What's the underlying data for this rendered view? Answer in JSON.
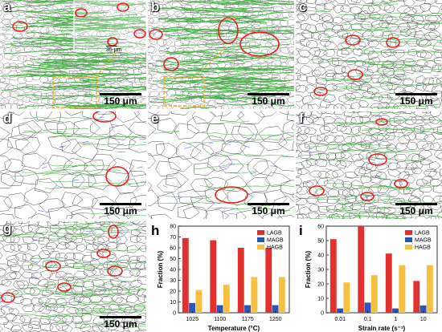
{
  "panels": [
    {
      "label": "a",
      "scale": "150 μm",
      "inset_scale": "35 μm"
    },
    {
      "label": "b",
      "scale": "150 μm"
    },
    {
      "label": "c",
      "scale": "150 μm"
    },
    {
      "label": "d",
      "scale": "150 μm"
    },
    {
      "label": "e",
      "scale": "150 μm"
    },
    {
      "label": "f",
      "scale": "150 μm"
    },
    {
      "label": "g",
      "scale": "150 μm"
    }
  ],
  "colors": {
    "LAGB": "#e03030",
    "MAGB": "#2a56b8",
    "HAGB": "#f8c040",
    "highlight": "#e8201c",
    "zoom_box": "#f0b020",
    "green_boundary": "#3aa83a",
    "blue_boundary": "#2040c0"
  },
  "chart_data": [
    {
      "label": "h",
      "type": "bar",
      "categories": [
        "1025",
        "1100",
        "1175",
        "1250"
      ],
      "series": [
        {
          "name": "LAGB",
          "values": [
            69,
            67,
            60,
            60
          ]
        },
        {
          "name": "MAGB",
          "values": [
            9,
            7,
            7,
            7
          ]
        },
        {
          "name": "HAGB",
          "values": [
            21,
            26,
            33,
            33
          ]
        }
      ],
      "xlabel": "Temperature (°C)",
      "ylabel": "Fraction (%)",
      "ylim": [
        0,
        80
      ],
      "yticks": [
        "0",
        "10",
        "20",
        "30",
        "40",
        "50",
        "60",
        "70",
        "80"
      ],
      "legend": "top-right"
    },
    {
      "label": "i",
      "type": "bar",
      "categories": [
        "0.01",
        "0.1",
        "1",
        "10"
      ],
      "series": [
        {
          "name": "LAGB",
          "values": [
            51,
            60,
            41,
            22
          ]
        },
        {
          "name": "MAGB",
          "values": [
            3,
            7,
            3,
            5
          ]
        },
        {
          "name": "HAGB",
          "values": [
            21,
            26,
            33,
            33
          ]
        }
      ],
      "xlabel": "Strain rate (s⁻¹)",
      "ylabel": "Fraction (%)",
      "ylim": [
        0,
        60
      ],
      "yticks": [
        "0",
        "10",
        "20",
        "30",
        "40",
        "50",
        "60"
      ],
      "legend": "top-right"
    }
  ]
}
